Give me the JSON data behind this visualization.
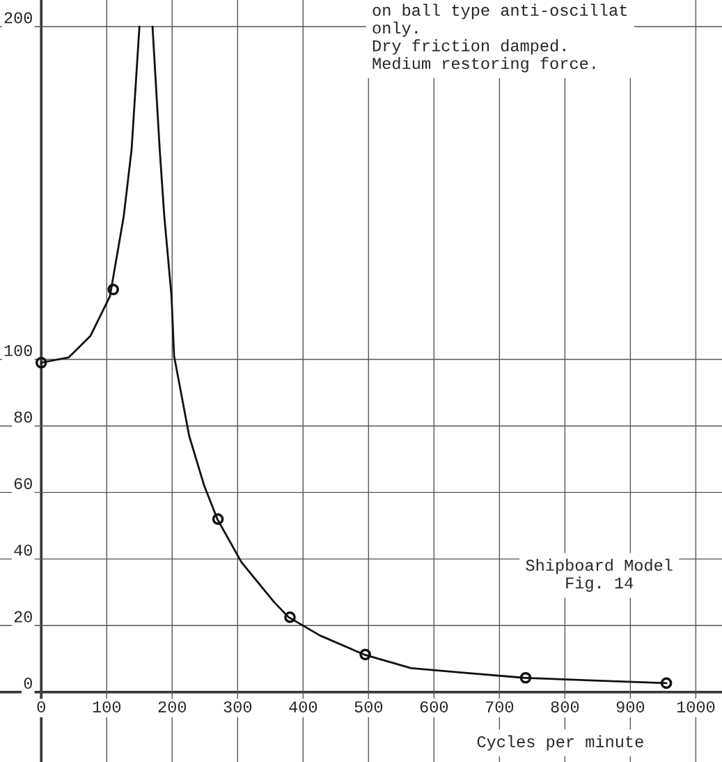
{
  "chart_data": {
    "type": "line",
    "xlabel": "Cycles per minute",
    "annotations": [
      "on ball type anti-oscillat\nonly.\nDry friction damped.\nMedium restoring force.",
      "Shipboard Model\nFig. 14"
    ],
    "xlim": [
      -63,
      1040
    ],
    "ylim": [
      -21,
      208
    ],
    "xticks": [
      0,
      100,
      200,
      300,
      400,
      500,
      600,
      700,
      800,
      900,
      1000
    ],
    "yticks": [
      0,
      20,
      40,
      60,
      80,
      100,
      200
    ],
    "grid": true,
    "series": [
      {
        "color": "#111111",
        "line_style": "solid",
        "x": [
          0,
          42,
          75,
          105,
          126,
          138,
          150,
          160,
          170,
          181,
          188,
          199,
          203,
          226,
          249,
          269,
          306,
          356,
          378,
          426,
          493,
          565,
          635,
          738,
          845,
          955
        ],
        "values": [
          99,
          100.6,
          107,
          119,
          143,
          163,
          200,
          null,
          200,
          163,
          143,
          119,
          101,
          77,
          62,
          52,
          39,
          27,
          22.5,
          17,
          11.3,
          7.2,
          6,
          4.3,
          3.5,
          2.7
        ]
      },
      {
        "type": "scatter",
        "color": "#111111",
        "marker": "circle",
        "x": [
          0,
          110,
          270,
          380,
          495,
          740,
          955
        ],
        "values": [
          99,
          121,
          52,
          22.5,
          11.3,
          4.3,
          2.7
        ]
      }
    ]
  }
}
